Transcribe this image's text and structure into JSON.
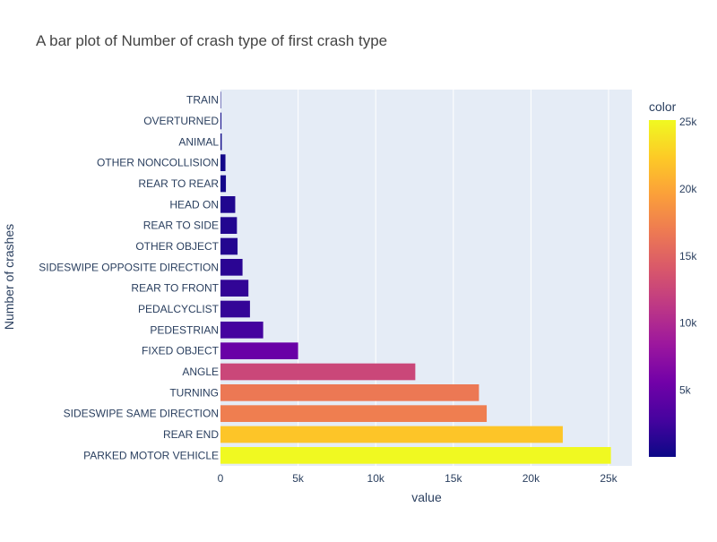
{
  "chart_data": {
    "type": "bar",
    "orientation": "horizontal",
    "title": "A bar plot of Number of crash type of first crash type",
    "xlabel": "value",
    "ylabel": "Number of crashes",
    "xlim": [
      0,
      26500
    ],
    "x_ticks": [
      {
        "value": 0,
        "label": "0"
      },
      {
        "value": 5000,
        "label": "5k"
      },
      {
        "value": 10000,
        "label": "10k"
      },
      {
        "value": 15000,
        "label": "15k"
      },
      {
        "value": 20000,
        "label": "20k"
      },
      {
        "value": 25000,
        "label": "25k"
      }
    ],
    "grid": true,
    "categories": [
      "PARKED MOTOR VEHICLE",
      "REAR END",
      "SIDESWIPE SAME DIRECTION",
      "TURNING",
      "ANGLE",
      "FIXED OBJECT",
      "PEDESTRIAN",
      "PEDALCYCLIST",
      "REAR TO FRONT",
      "SIDESWIPE OPPOSITE DIRECTION",
      "OTHER OBJECT",
      "REAR TO SIDE",
      "HEAD ON",
      "REAR TO REAR",
      "OTHER NONCOLLISION",
      "ANIMAL",
      "OVERTURNED",
      "TRAIN"
    ],
    "values": [
      25150,
      22050,
      17150,
      16650,
      12550,
      5000,
      2750,
      1900,
      1800,
      1420,
      1100,
      1060,
      950,
      350,
      320,
      80,
      60,
      10
    ],
    "colorbar": {
      "title": "color",
      "min": 10,
      "max": 25150,
      "placement": "right",
      "ticks": [
        {
          "value": 5000,
          "label": "5k"
        },
        {
          "value": 10000,
          "label": "10k"
        },
        {
          "value": 15000,
          "label": "15k"
        },
        {
          "value": 20000,
          "label": "20k"
        },
        {
          "value": 25000,
          "label": "25k"
        }
      ],
      "colorscale": [
        "#0d0887",
        "#46039f",
        "#7201a8",
        "#9c179e",
        "#bd3786",
        "#d8576b",
        "#ed7953",
        "#fb9f3a",
        "#fdca26",
        "#f0f921"
      ]
    },
    "colors": {
      "plot_bg": "#e5ecf6",
      "grid": "#ffffff",
      "text": "#2a3f5f",
      "title": "#444444"
    }
  }
}
